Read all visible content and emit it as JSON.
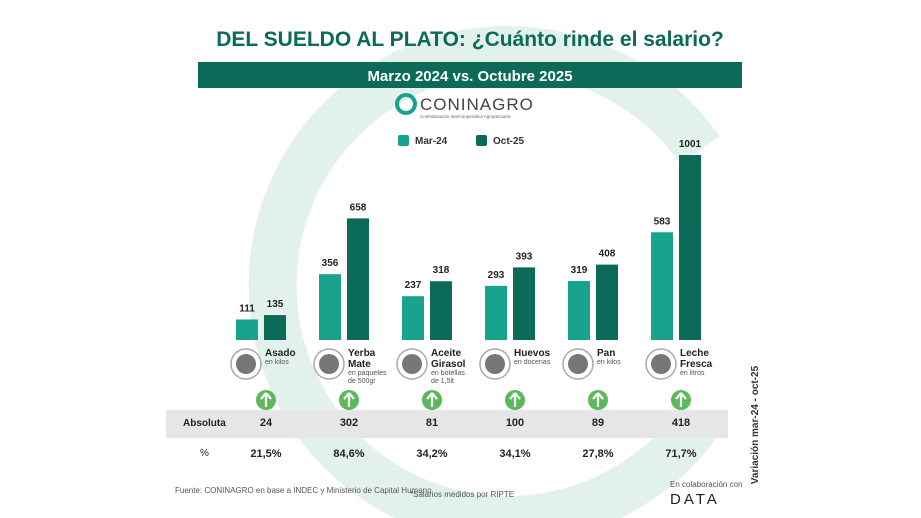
{
  "chart_data": {
    "type": "bar",
    "title": "DEL SUELDO AL PLATO: ¿Cuánto rinde el salario?",
    "subtitle": "Marzo 2024 vs. Octubre 2025",
    "brand": "CONINAGRO",
    "brand_tagline": "Confederación Intercooperativa Agropecuaria",
    "categories": [
      "Asado",
      "Yerba Mate",
      "Aceite Girasol",
      "Huevos",
      "Pan",
      "Leche Fresca"
    ],
    "units": [
      "en kilos",
      "en paquetes de 500gr",
      "en botellas de 1,5lt",
      "en docenas",
      "en kilos",
      "en litros"
    ],
    "series": [
      {
        "name": "Mar-24",
        "color": "#18a48c",
        "values": [
          111,
          356,
          237,
          293,
          319,
          583
        ]
      },
      {
        "name": "Oct-25",
        "color": "#0b6a58",
        "values": [
          135,
          658,
          318,
          393,
          408,
          1001
        ]
      }
    ],
    "variation": {
      "title": "Variación mar-24 - oct-25",
      "absolute": {
        "label": "Absoluta",
        "values": [
          24,
          302,
          81,
          100,
          89,
          418
        ]
      },
      "percent": {
        "label": "%",
        "values": [
          21.5,
          84.6,
          34.2,
          34.1,
          27.8,
          71.7
        ],
        "value_labels": [
          "21,5%",
          "84,6%",
          "34,2%",
          "34,1%",
          "27,8%",
          "71,7%"
        ]
      }
    },
    "source": "Fuente: CONINAGRO en base a INDEC y Ministerio de Capital Humano",
    "note": "*Salarios medidos por RIPTE",
    "collab": "En colaboración con",
    "collab_brand": "DATA"
  }
}
